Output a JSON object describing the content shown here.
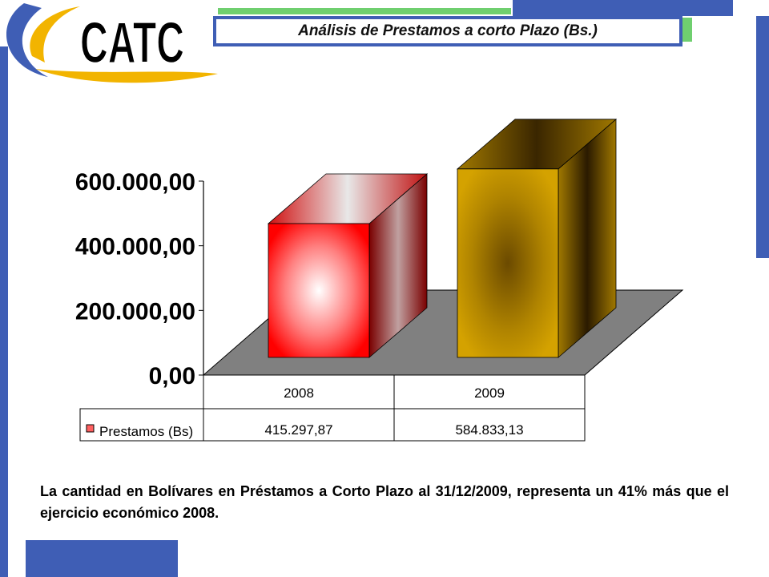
{
  "header": {
    "logo_text": "CATC",
    "title": "Análisis de Prestamos a corto Plazo  (Bs.)"
  },
  "colors": {
    "frame_blue": "#3F5EB5",
    "accent_green": "#6FCF6F",
    "logo_gold": "#F2B400",
    "bar_2008": "#FF1A1A",
    "bar_2009": "#C99800",
    "floor": "#808080"
  },
  "chart_data": {
    "type": "bar",
    "categories": [
      "2008",
      "2009"
    ],
    "series": [
      {
        "name": "Prestamos (Bs)",
        "values": [
          415297.87,
          584833.13
        ]
      }
    ],
    "value_labels": [
      "415.297,87",
      "584.833,13"
    ],
    "y_ticks": [
      0,
      200000,
      400000,
      600000
    ],
    "y_tick_labels": [
      "0,00",
      "200.000,00",
      "400.000,00",
      "600.000,00"
    ],
    "ylim": [
      0,
      600000
    ],
    "grid": false,
    "legend": "data-table",
    "style": "3d"
  },
  "caption": "La cantidad en Bolívares en Préstamos a Corto Plazo al 31/12/2009, representa un 41% más que el ejercicio económico  2008."
}
